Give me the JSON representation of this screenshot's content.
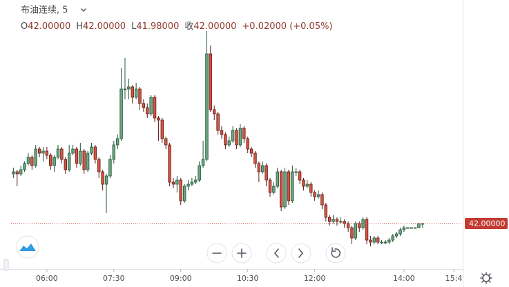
{
  "chart_data": {
    "type": "candlestick",
    "title": "布油连续, 5",
    "legend": [
      {
        "key": "O",
        "text": "42.00000"
      },
      {
        "key": "H",
        "text": "42.00000"
      },
      {
        "key": "L",
        "text": "41.98000"
      },
      {
        "key": "收",
        "text": "42.00000"
      }
    ],
    "change": "+0.02000 (+0.05%)",
    "last_price": {
      "value": 42,
      "label": "42.00000"
    },
    "up_color": "#6ba583",
    "down_color": "#d75442",
    "up_border": "#225437",
    "down_border": "#5b1a13",
    "last_price_color": "#c23b32",
    "xlim": [
      297,
      919
    ],
    "ylim": [
      41.78,
      43.08
    ],
    "xticks": [
      {
        "value": 360,
        "label": "06:00"
      },
      {
        "value": 450,
        "label": "07:30"
      },
      {
        "value": 540,
        "label": "09:00"
      },
      {
        "value": 630,
        "label": "10:30"
      },
      {
        "value": 720,
        "label": "12:00"
      },
      {
        "value": 840,
        "label": "14:00"
      },
      {
        "value": 907,
        "label": "15:4"
      }
    ],
    "x": [
      315,
      320,
      325,
      330,
      335,
      340,
      345,
      350,
      355,
      360,
      365,
      370,
      375,
      380,
      385,
      390,
      395,
      400,
      405,
      410,
      415,
      420,
      425,
      430,
      435,
      440,
      445,
      450,
      455,
      460,
      465,
      470,
      475,
      480,
      485,
      490,
      495,
      500,
      505,
      510,
      515,
      520,
      525,
      530,
      535,
      540,
      545,
      550,
      555,
      560,
      565,
      570,
      575,
      580,
      585,
      590,
      595,
      600,
      605,
      610,
      615,
      620,
      625,
      630,
      635,
      640,
      645,
      650,
      655,
      660,
      665,
      670,
      675,
      680,
      685,
      690,
      695,
      700,
      705,
      710,
      715,
      720,
      725,
      730,
      735,
      740,
      745,
      750,
      755,
      760,
      765,
      770,
      775,
      780,
      785,
      790,
      795,
      800,
      805,
      810,
      815,
      820,
      825,
      830,
      835,
      840,
      845,
      850,
      855,
      860,
      865
    ],
    "open": [
      42.24,
      42.25,
      42.24,
      42.26,
      42.29,
      42.32,
      42.28,
      42.36,
      42.34,
      42.35,
      42.33,
      42.28,
      42.32,
      42.36,
      42.31,
      42.26,
      42.34,
      42.36,
      42.29,
      42.35,
      42.26,
      42.34,
      42.37,
      42.31,
      42.25,
      42.19,
      42.23,
      42.31,
      42.38,
      42.41,
      42.65,
      42.65,
      42.66,
      42.61,
      42.65,
      42.58,
      42.56,
      42.53,
      42.61,
      42.51,
      42.5,
      42.41,
      42.38,
      42.2,
      42.19,
      42.21,
      42.11,
      42.18,
      42.19,
      42.2,
      42.21,
      42.28,
      42.31,
      42.82,
      42.55,
      42.53,
      42.45,
      42.43,
      42.38,
      42.4,
      42.45,
      42.38,
      42.46,
      42.41,
      42.36,
      42.34,
      42.29,
      42.25,
      42.28,
      42.21,
      42.15,
      42.18,
      42.25,
      42.08,
      42.25,
      42.11,
      42.25,
      42.25,
      42.21,
      42.18,
      42.19,
      42.15,
      42.13,
      42.14,
      42.09,
      42.03,
      42.01,
      42.02,
      42.01,
      42.01,
      42.0,
      41.98,
      41.93,
      42.0,
      41.98,
      42.02,
      41.92,
      41.91,
      41.93,
      41.91,
      41.91,
      41.91,
      41.92,
      41.94,
      41.95,
      41.97,
      41.98,
      41.98,
      41.98,
      41.98,
      42.0
    ],
    "high": [
      42.27,
      42.26,
      42.28,
      42.3,
      42.34,
      42.33,
      42.38,
      42.37,
      42.37,
      42.37,
      42.34,
      42.33,
      42.38,
      42.37,
      42.32,
      42.38,
      42.38,
      42.37,
      42.39,
      42.36,
      42.35,
      42.39,
      42.38,
      42.32,
      42.26,
      42.24,
      42.33,
      42.4,
      42.43,
      42.75,
      42.8,
      42.7,
      42.67,
      42.68,
      42.66,
      42.6,
      42.58,
      42.62,
      42.62,
      42.52,
      42.51,
      42.42,
      42.39,
      42.22,
      42.23,
      42.22,
      42.19,
      42.21,
      42.22,
      42.23,
      42.3,
      42.4,
      42.93,
      42.86,
      42.57,
      42.54,
      42.47,
      42.44,
      42.42,
      42.47,
      42.46,
      42.48,
      42.47,
      42.42,
      42.37,
      42.35,
      42.3,
      42.3,
      42.29,
      42.22,
      42.2,
      42.27,
      42.26,
      42.27,
      42.26,
      42.28,
      42.27,
      42.26,
      42.22,
      42.21,
      42.2,
      42.16,
      42.16,
      42.15,
      42.1,
      42.04,
      42.04,
      42.03,
      42.03,
      42.02,
      42.01,
      41.99,
      42.01,
      42.01,
      42.03,
      42.03,
      41.94,
      41.94,
      41.94,
      41.92,
      41.92,
      41.93,
      41.95,
      41.96,
      41.98,
      41.99,
      41.98,
      41.98,
      41.98,
      42.0,
      42.0
    ],
    "low": [
      42.22,
      42.18,
      42.23,
      42.25,
      42.28,
      42.26,
      42.27,
      42.32,
      42.3,
      42.31,
      42.26,
      42.25,
      42.31,
      42.29,
      42.24,
      42.25,
      42.33,
      42.27,
      42.28,
      42.24,
      42.25,
      42.33,
      42.29,
      42.22,
      42.16,
      42.05,
      42.22,
      42.29,
      42.36,
      42.4,
      42.6,
      42.6,
      42.58,
      42.6,
      42.55,
      42.54,
      42.51,
      42.52,
      42.49,
      42.4,
      42.39,
      42.36,
      42.18,
      42.17,
      42.15,
      42.09,
      42.1,
      42.16,
      42.18,
      42.19,
      42.2,
      42.27,
      42.3,
      42.54,
      42.5,
      42.43,
      42.41,
      42.36,
      42.37,
      42.39,
      42.36,
      42.37,
      42.39,
      42.34,
      42.32,
      42.27,
      42.2,
      42.24,
      42.18,
      42.13,
      42.14,
      42.17,
      42.06,
      42.07,
      42.09,
      42.1,
      42.23,
      42.19,
      42.16,
      42.17,
      42.13,
      42.11,
      42.12,
      42.07,
      42.01,
      41.99,
      42.0,
      41.99,
      42.0,
      41.98,
      41.96,
      41.9,
      41.92,
      41.96,
      41.97,
      41.9,
      41.89,
      41.9,
      41.9,
      41.9,
      41.9,
      41.9,
      41.91,
      41.93,
      41.94,
      41.96,
      41.98,
      41.98,
      41.98,
      41.98,
      41.98
    ],
    "close": [
      42.25,
      42.24,
      42.26,
      42.29,
      42.32,
      42.28,
      42.36,
      42.34,
      42.35,
      42.33,
      42.28,
      42.32,
      42.36,
      42.31,
      42.26,
      42.34,
      42.36,
      42.29,
      42.35,
      42.26,
      42.34,
      42.37,
      42.31,
      42.25,
      42.19,
      42.23,
      42.31,
      42.38,
      42.41,
      42.65,
      42.65,
      42.66,
      42.61,
      42.65,
      42.58,
      42.56,
      42.53,
      42.61,
      42.51,
      42.5,
      42.41,
      42.38,
      42.2,
      42.19,
      42.21,
      42.11,
      42.18,
      42.19,
      42.2,
      42.21,
      42.28,
      42.31,
      42.82,
      42.55,
      42.53,
      42.45,
      42.43,
      42.38,
      42.4,
      42.45,
      42.38,
      42.46,
      42.41,
      42.36,
      42.34,
      42.29,
      42.25,
      42.28,
      42.21,
      42.15,
      42.18,
      42.25,
      42.08,
      42.25,
      42.11,
      42.25,
      42.25,
      42.21,
      42.18,
      42.19,
      42.15,
      42.13,
      42.14,
      42.09,
      42.03,
      42.01,
      42.02,
      42.01,
      42.01,
      42.0,
      41.98,
      41.93,
      42.0,
      41.98,
      42.02,
      41.92,
      41.91,
      41.93,
      41.91,
      41.91,
      41.91,
      41.92,
      41.94,
      41.95,
      41.97,
      41.98,
      41.98,
      41.98,
      41.98,
      42.0,
      42.0
    ]
  }
}
